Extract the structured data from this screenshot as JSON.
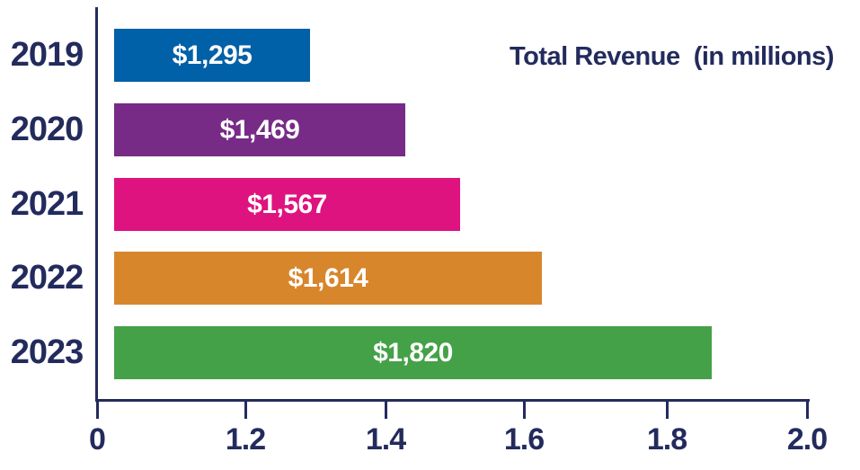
{
  "chart_data": {
    "type": "bar",
    "orientation": "horizontal",
    "title": "Total Revenue  (in millions)",
    "categories": [
      "2019",
      "2020",
      "2021",
      "2022",
      "2023"
    ],
    "values": [
      1295,
      1469,
      1567,
      1614,
      1820
    ],
    "value_labels": [
      "$1,295",
      "$1,469",
      "$1,567",
      "$1,614",
      "$1,820"
    ],
    "bar_colors": [
      "#0060A8",
      "#772B86",
      "#DE1380",
      "#D8862C",
      "#44A148"
    ],
    "x_ticks": [
      "0",
      "1.2",
      "1.4",
      "1.6",
      "1.8",
      "2.0"
    ],
    "xlim": [
      0,
      2.0
    ],
    "x_scale_note": "broken axis: 0 tick at origin, then 1.2 to 2.0 evenly spaced",
    "xlabel": "",
    "ylabel": "",
    "grid": false,
    "legend": "none",
    "axis_color": "#232B5D",
    "value_label_color": "#FFFFFF",
    "category_label_color": "#232B5D",
    "title_color": "#232B5D"
  }
}
